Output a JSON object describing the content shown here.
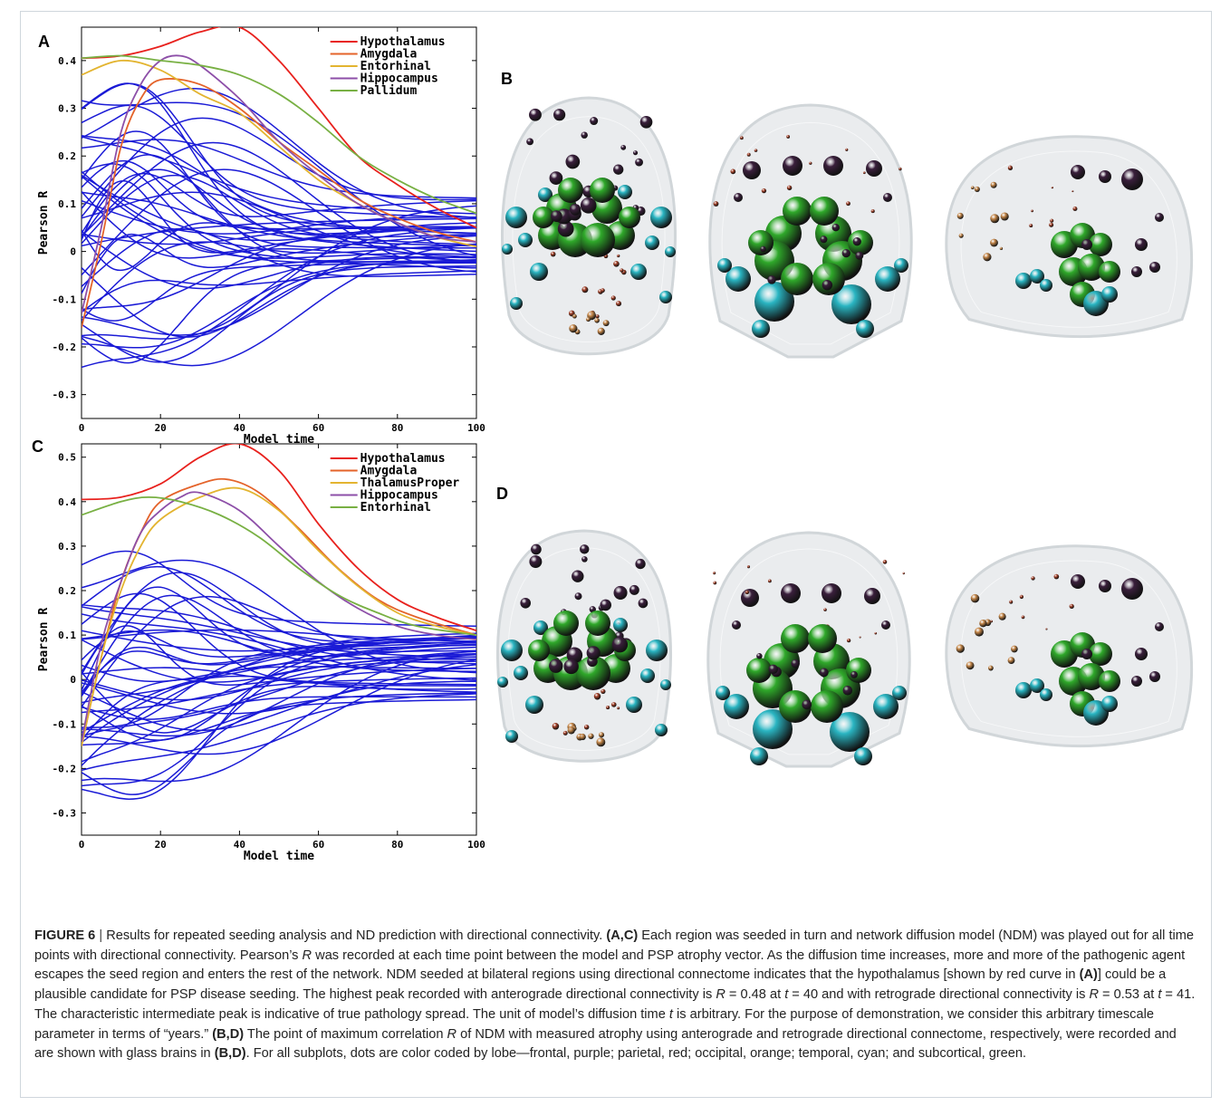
{
  "figure": {
    "panels": {
      "A": "A",
      "B": "B",
      "C": "C",
      "D": "D"
    }
  },
  "chart_data": [
    {
      "panel": "A",
      "type": "line",
      "xlabel": "Model time",
      "ylabel": "Pearson R",
      "xlim": [
        0,
        100
      ],
      "ylim": [
        -0.35,
        0.47
      ],
      "xticks": [
        0,
        20,
        40,
        60,
        80,
        100
      ],
      "yticks": [
        -0.3,
        -0.2,
        -0.1,
        0,
        0.1,
        0.2,
        0.3,
        0.4
      ],
      "legend_position": "top-right",
      "series": [
        {
          "name": "Hypothalamus",
          "color": "#e8211d",
          "x": [
            0,
            10,
            20,
            30,
            40,
            50,
            60,
            70,
            80,
            90,
            100
          ],
          "y": [
            0.405,
            0.41,
            0.43,
            0.46,
            0.47,
            0.4,
            0.3,
            0.2,
            0.14,
            0.09,
            0.05
          ]
        },
        {
          "name": "Amygdala",
          "color": "#e4632a",
          "x": [
            0,
            5,
            10,
            15,
            20,
            30,
            40,
            50,
            60,
            70,
            80,
            90,
            100
          ],
          "y": [
            -0.16,
            0.02,
            0.22,
            0.32,
            0.36,
            0.35,
            0.3,
            0.23,
            0.17,
            0.11,
            0.07,
            0.04,
            0.02
          ]
        },
        {
          "name": "Entorhinal",
          "color": "#e3b430",
          "x": [
            0,
            10,
            20,
            30,
            40,
            50,
            60,
            70,
            80,
            90,
            100
          ],
          "y": [
            0.37,
            0.4,
            0.38,
            0.33,
            0.29,
            0.22,
            0.15,
            0.1,
            0.06,
            0.03,
            0.01
          ]
        },
        {
          "name": "Hippocampus",
          "color": "#8d4fa8",
          "x": [
            0,
            5,
            10,
            15,
            20,
            25,
            30,
            40,
            50,
            60,
            70,
            80,
            90,
            100
          ],
          "y": [
            -0.13,
            0.05,
            0.25,
            0.35,
            0.4,
            0.41,
            0.39,
            0.32,
            0.23,
            0.16,
            0.1,
            0.06,
            0.03,
            0.02
          ]
        },
        {
          "name": "Pallidum",
          "color": "#78b043",
          "x": [
            0,
            10,
            20,
            30,
            40,
            50,
            60,
            70,
            80,
            90,
            100
          ],
          "y": [
            0.405,
            0.41,
            0.4,
            0.39,
            0.37,
            0.33,
            0.27,
            0.2,
            0.15,
            0.11,
            0.08
          ]
        }
      ]
    },
    {
      "panel": "C",
      "type": "line",
      "xlabel": "Model time",
      "ylabel": "Pearson R",
      "xlim": [
        0,
        100
      ],
      "ylim": [
        -0.35,
        0.53
      ],
      "xticks": [
        0,
        20,
        40,
        60,
        80,
        100
      ],
      "yticks": [
        -0.3,
        -0.2,
        -0.1,
        0,
        0.1,
        0.2,
        0.3,
        0.4,
        0.5
      ],
      "legend_position": "top-right",
      "series": [
        {
          "name": "Hypothalamus",
          "color": "#e8211d",
          "x": [
            0,
            10,
            20,
            30,
            40,
            50,
            60,
            70,
            80,
            90,
            100
          ],
          "y": [
            0.405,
            0.41,
            0.44,
            0.5,
            0.53,
            0.47,
            0.35,
            0.25,
            0.18,
            0.14,
            0.11
          ]
        },
        {
          "name": "Amygdala",
          "color": "#e4632a",
          "x": [
            0,
            5,
            10,
            15,
            20,
            30,
            37,
            45,
            55,
            65,
            75,
            85,
            100
          ],
          "y": [
            -0.15,
            0.05,
            0.22,
            0.33,
            0.4,
            0.44,
            0.45,
            0.42,
            0.34,
            0.25,
            0.18,
            0.14,
            0.1
          ]
        },
        {
          "name": "ThalamusProper",
          "color": "#e3b430",
          "x": [
            0,
            5,
            10,
            15,
            20,
            30,
            40,
            50,
            60,
            70,
            80,
            90,
            100
          ],
          "y": [
            -0.15,
            0.05,
            0.2,
            0.3,
            0.36,
            0.41,
            0.43,
            0.38,
            0.29,
            0.21,
            0.15,
            0.12,
            0.1
          ]
        },
        {
          "name": "Hippocampus",
          "color": "#8d4fa8",
          "x": [
            0,
            5,
            10,
            15,
            20,
            25,
            30,
            40,
            50,
            60,
            70,
            80,
            90,
            100
          ],
          "y": [
            -0.14,
            0.08,
            0.22,
            0.33,
            0.38,
            0.41,
            0.42,
            0.38,
            0.3,
            0.22,
            0.16,
            0.12,
            0.1,
            0.09
          ]
        },
        {
          "name": "Entorhinal",
          "color": "#78b043",
          "x": [
            0,
            10,
            17,
            25,
            35,
            45,
            55,
            65,
            75,
            85,
            100
          ],
          "y": [
            0.37,
            0.4,
            0.41,
            0.4,
            0.37,
            0.32,
            0.25,
            0.19,
            0.15,
            0.12,
            0.1
          ]
        }
      ]
    }
  ],
  "caption": {
    "label": "FIGURE 6",
    "sep": " | ",
    "s1": "Results for repeated seeding analysis and ND prediction with directional connectivity. ",
    "b1": "(A,C)",
    "s2": " Each region was seeded in turn and network diffusion model (NDM) was played out for all time points with directional connectivity. Pearson’s ",
    "i1": "R",
    "s3": " was recorded at each time point between the model and PSP atrophy vector. As the diffusion time increases, more and more of the pathogenic agent escapes the seed region and enters the rest of the network. NDM seeded at bilateral regions using directional connectome indicates that the hypothalamus [shown by red curve in ",
    "b2": "(A)",
    "s4": "] could be a plausible candidate for PSP disease seeding. The highest peak recorded with anterograde directional connectivity is ",
    "i2": "R",
    "s5": " = 0.48 at ",
    "i3": "t",
    "s6": " = 40 and with retrograde directional connectivity is ",
    "i4": "R",
    "s7": " = 0.53 at ",
    "i5": "t",
    "s8": " = 41. The characteristic intermediate peak is indicative of true pathology spread. The unit of model’s diffusion time ",
    "i6": "t",
    "s9": " is arbitrary. For the purpose of demonstration, we consider this arbitrary timescale parameter in terms of “years.” ",
    "b3": "(B,D)",
    "s10": " The point of maximum correlation ",
    "i7": "R",
    "s11": " of NDM with measured atrophy using anterograde and retrograde directional connectome, respectively, were recorded and are shown with glass brains in ",
    "b4": "(B,D)",
    "s12": ". For all subplots, dots are color coded by lobe—frontal, purple; parietal, red; occipital, orange; temporal, cyan; and subcortical, green."
  },
  "colors": {
    "blue_curves": "#1a1ad6",
    "frontal": "#3a1f3c",
    "parietal": "#a8432a",
    "occipital": "#c98a4b",
    "temporal": "#2ab5c2",
    "subcortical": "#2fa82a"
  }
}
